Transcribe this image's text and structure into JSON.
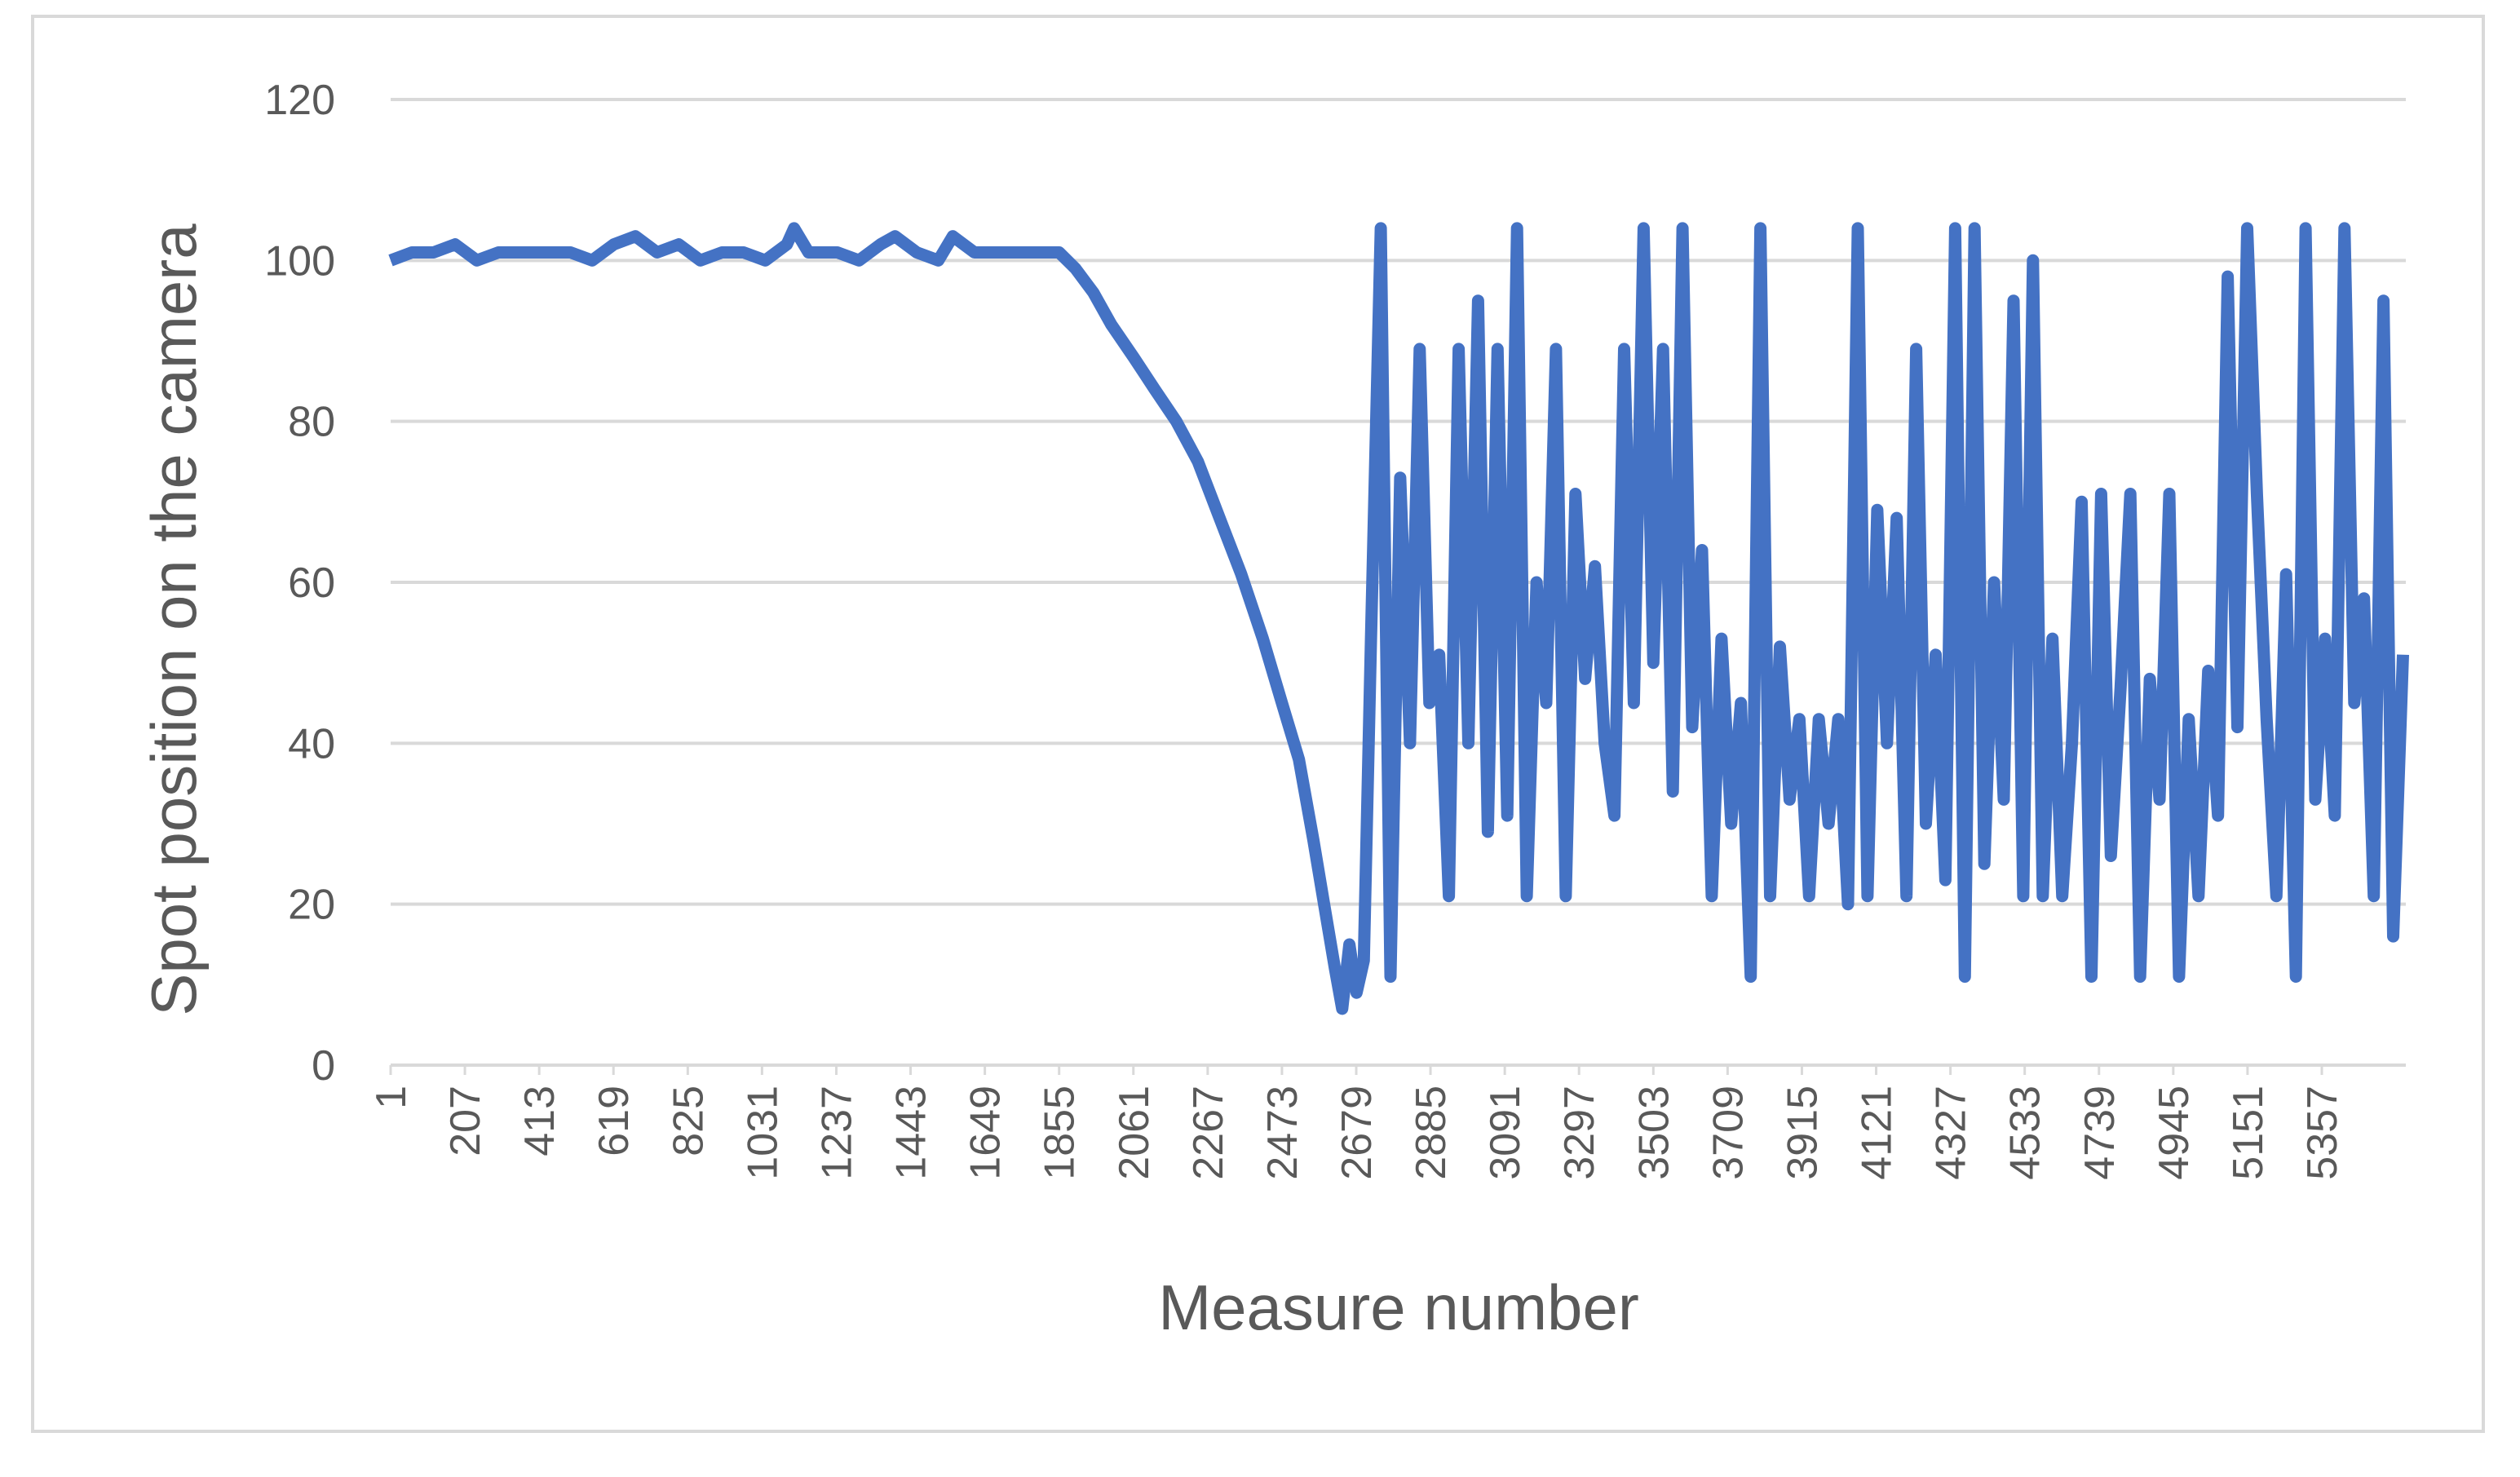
{
  "chart_data": {
    "type": "line",
    "xlabel": "Measure number",
    "ylabel": "Spot position on the camera",
    "xlim": [
      1,
      5590
    ],
    "xticks": [
      1,
      207,
      413,
      619,
      825,
      1031,
      1237,
      1443,
      1649,
      1855,
      2061,
      2267,
      2473,
      2679,
      2885,
      3091,
      3297,
      3503,
      3709,
      3915,
      4121,
      4327,
      4533,
      4739,
      4945,
      5151,
      5357
    ],
    "ylim": [
      0,
      120
    ],
    "yticks": [
      0,
      20,
      40,
      60,
      80,
      100,
      120
    ],
    "grid": true,
    "series": [
      {
        "color": "#4472c4",
        "x": [
          1,
          60,
          120,
          180,
          240,
          300,
          400,
          500,
          560,
          620,
          680,
          740,
          800,
          860,
          920,
          980,
          1040,
          1100,
          1120,
          1160,
          1240,
          1300,
          1360,
          1400,
          1460,
          1520,
          1560,
          1620,
          1700,
          1780,
          1855,
          1900,
          1950,
          2000,
          2061,
          2120,
          2180,
          2240,
          2300,
          2360,
          2420,
          2473,
          2520,
          2560,
          2590,
          2620,
          2640,
          2660,
          2680,
          2700,
          2720,
          2747,
          2774,
          2801,
          2828,
          2855,
          2882,
          2909,
          2936,
          2963,
          2990,
          3017,
          3044,
          3071,
          3098,
          3125,
          3152,
          3179,
          3206,
          3233,
          3260,
          3287,
          3314,
          3341,
          3368,
          3395,
          3422,
          3449,
          3476,
          3503,
          3530,
          3557,
          3584,
          3611,
          3638,
          3665,
          3692,
          3719,
          3746,
          3773,
          3800,
          3827,
          3854,
          3881,
          3908,
          3935,
          3962,
          3989,
          4016,
          4043,
          4070,
          4097,
          4124,
          4151,
          4178,
          4205,
          4232,
          4259,
          4286,
          4313,
          4340,
          4367,
          4394,
          4421,
          4448,
          4475,
          4502,
          4529,
          4556,
          4583,
          4610,
          4637,
          4664,
          4691,
          4718,
          4745,
          4772,
          4799,
          4826,
          4853,
          4880,
          4907,
          4934,
          4961,
          4988,
          5015,
          5042,
          5069,
          5096,
          5123,
          5150,
          5177,
          5204,
          5231,
          5258,
          5285,
          5312,
          5339,
          5366,
          5393,
          5420,
          5447,
          5474,
          5501,
          5528,
          5555,
          5582
        ],
        "values": [
          100,
          101,
          101,
          102,
          100,
          101,
          101,
          101,
          100,
          102,
          103,
          101,
          102,
          100,
          101,
          101,
          100,
          102,
          104,
          101,
          101,
          100,
          102,
          103,
          101,
          100,
          103,
          101,
          101,
          101,
          101,
          99,
          96,
          92,
          88,
          84,
          80,
          75,
          68,
          61,
          53,
          45,
          38,
          28,
          20,
          12,
          7,
          15,
          9,
          13,
          53,
          104,
          11,
          73,
          40,
          89,
          45,
          51,
          21,
          89,
          40,
          95,
          29,
          89,
          31,
          104,
          21,
          60,
          45,
          89,
          21,
          71,
          48,
          62,
          40,
          31,
          89,
          45,
          104,
          50,
          89,
          34,
          104,
          42,
          64,
          21,
          53,
          30,
          45,
          11,
          104,
          21,
          52,
          33,
          43,
          21,
          43,
          30,
          43,
          20,
          104,
          21,
          69,
          40,
          68,
          21,
          89,
          30,
          51,
          23,
          104,
          11,
          104,
          25,
          60,
          33,
          95,
          21,
          100,
          21,
          53,
          21,
          40,
          70,
          11,
          71,
          26,
          47,
          71,
          11,
          48,
          33,
          71,
          11,
          43,
          21,
          49,
          31,
          98,
          42,
          104,
          71,
          43,
          21,
          61,
          11,
          104,
          33,
          53,
          31,
          104,
          45,
          58,
          21,
          95,
          16,
          51
        ]
      }
    ]
  }
}
